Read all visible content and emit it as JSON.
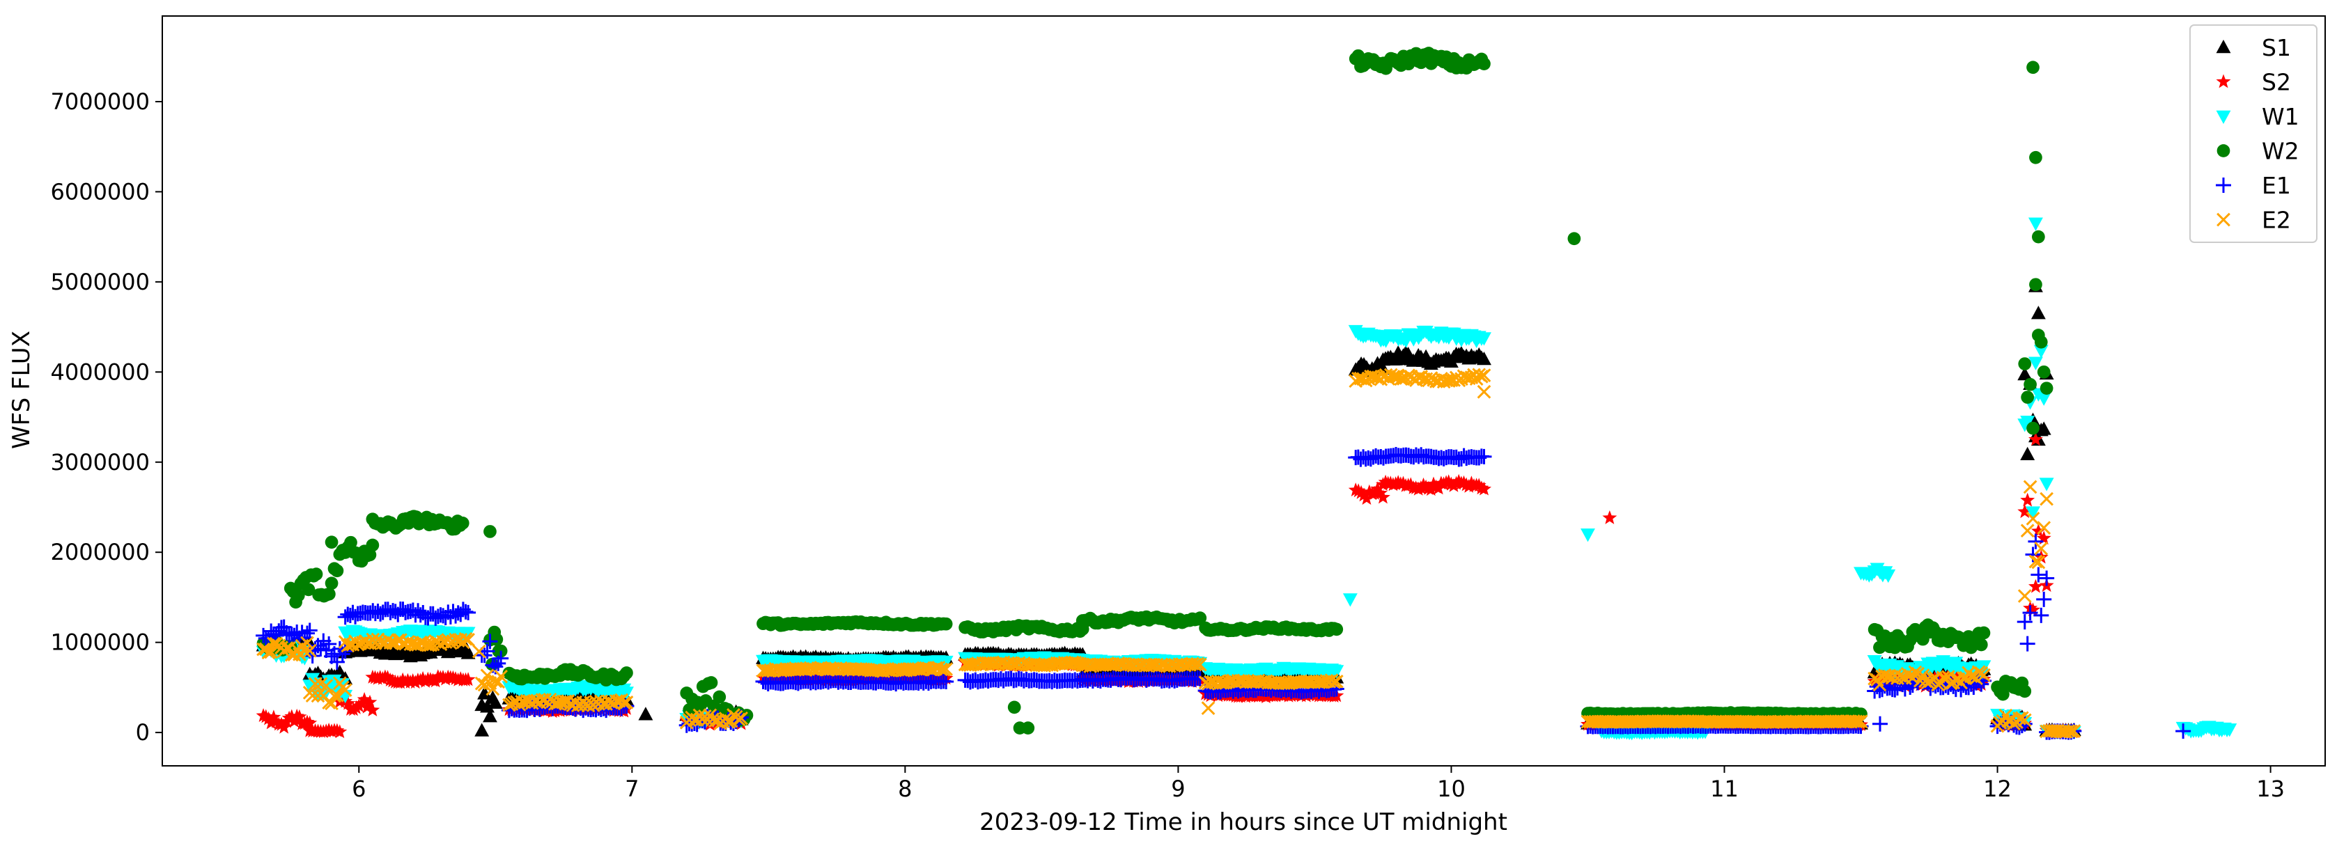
{
  "chart_data": {
    "type": "scatter",
    "title": "",
    "xlabel": "2023-09-12  Time in hours since UT midnight",
    "ylabel": "WFS FLUX",
    "xlim": [
      5.28,
      13.2
    ],
    "ylim": [
      -370000,
      7950000
    ],
    "xticks": [
      6,
      7,
      8,
      9,
      10,
      11,
      12,
      13
    ],
    "yticks": [
      0,
      1000000,
      2000000,
      3000000,
      4000000,
      5000000,
      6000000,
      7000000
    ],
    "ytick_labels": [
      "0",
      "1000000",
      "2000000",
      "3000000",
      "4000000",
      "5000000",
      "6000000",
      "7000000"
    ],
    "grid": false,
    "legend_position": "top-right",
    "series": [
      {
        "name": "S1",
        "color": "#000000",
        "marker": "triangle-up",
        "segments": [
          [
            5.65,
            5.82,
            950000,
            80000
          ],
          [
            5.82,
            5.95,
            620000,
            60000
          ],
          [
            5.95,
            6.4,
            900000,
            60000
          ],
          [
            6.45,
            6.5,
            300000,
            150000
          ],
          [
            6.55,
            6.98,
            380000,
            40000
          ],
          [
            7.2,
            7.4,
            180000,
            60000
          ],
          [
            7.48,
            8.15,
            820000,
            20000
          ],
          [
            8.22,
            8.65,
            860000,
            20000
          ],
          [
            8.65,
            9.08,
            640000,
            20000
          ],
          [
            9.1,
            9.58,
            620000,
            20000
          ],
          [
            9.65,
            9.75,
            4050000,
            60000
          ],
          [
            9.75,
            10.12,
            4150000,
            70000
          ],
          [
            10.5,
            11.5,
            95000,
            8000
          ],
          [
            11.55,
            11.95,
            700000,
            80000
          ],
          [
            12.0,
            12.1,
            120000,
            60000
          ],
          [
            12.1,
            12.18,
            3200000,
            1400000
          ],
          [
            12.18,
            12.28,
            20000,
            10000
          ]
        ],
        "points": [
          [
            6.45,
            20000
          ],
          [
            7.05,
            200000
          ],
          [
            12.14,
            4950000
          ],
          [
            12.15,
            4650000
          ]
        ]
      },
      {
        "name": "S2",
        "color": "#ff0000",
        "marker": "star",
        "segments": [
          [
            5.65,
            5.82,
            120000,
            80000
          ],
          [
            5.82,
            5.93,
            15000,
            12000
          ],
          [
            5.93,
            6.05,
            300000,
            80000
          ],
          [
            6.05,
            6.4,
            580000,
            40000
          ],
          [
            6.55,
            6.98,
            260000,
            30000
          ],
          [
            7.2,
            7.4,
            140000,
            60000
          ],
          [
            7.48,
            8.15,
            600000,
            20000
          ],
          [
            8.22,
            8.65,
            760000,
            20000
          ],
          [
            8.65,
            9.08,
            580000,
            20000
          ],
          [
            9.1,
            9.58,
            410000,
            20000
          ],
          [
            9.65,
            9.75,
            2650000,
            60000
          ],
          [
            9.75,
            10.12,
            2740000,
            50000
          ],
          [
            10.5,
            11.5,
            90000,
            6000
          ],
          [
            11.55,
            11.95,
            580000,
            80000
          ],
          [
            12.0,
            12.1,
            110000,
            60000
          ],
          [
            12.1,
            12.18,
            1800000,
            900000
          ],
          [
            12.18,
            12.28,
            15000,
            10000
          ]
        ],
        "points": [
          [
            10.58,
            2380000
          ],
          [
            12.14,
            3250000
          ]
        ]
      },
      {
        "name": "W1",
        "color": "#00ffff",
        "marker": "triangle-down",
        "segments": [
          [
            5.65,
            5.82,
            900000,
            80000
          ],
          [
            5.82,
            5.95,
            520000,
            120000
          ],
          [
            5.95,
            6.4,
            1100000,
            40000
          ],
          [
            6.55,
            6.98,
            480000,
            40000
          ],
          [
            7.2,
            7.4,
            160000,
            60000
          ],
          [
            7.48,
            8.15,
            790000,
            20000
          ],
          [
            8.22,
            8.65,
            820000,
            20000
          ],
          [
            8.65,
            9.08,
            790000,
            20000
          ],
          [
            9.1,
            9.58,
            700000,
            20000
          ],
          [
            9.65,
            10.12,
            4400000,
            60000
          ],
          [
            10.55,
            10.93,
            10000,
            12000
          ],
          [
            11.5,
            11.6,
            1780000,
            60000
          ],
          [
            11.55,
            11.95,
            720000,
            80000
          ],
          [
            12.0,
            12.1,
            160000,
            60000
          ],
          [
            12.1,
            12.18,
            3500000,
            1800000
          ],
          [
            12.18,
            12.28,
            15000,
            10000
          ],
          [
            12.68,
            12.85,
            40000,
            30000
          ]
        ],
        "points": [
          [
            9.63,
            1480000
          ],
          [
            10.5,
            2200000
          ],
          [
            12.14,
            5650000
          ]
        ]
      },
      {
        "name": "W2",
        "color": "#008000",
        "marker": "circle",
        "segments": [
          [
            5.65,
            5.75,
            950000,
            60000
          ],
          [
            5.75,
            5.9,
            1600000,
            250000
          ],
          [
            5.9,
            6.05,
            2000000,
            250000
          ],
          [
            6.05,
            6.38,
            2330000,
            80000
          ],
          [
            6.48,
            6.52,
            1000000,
            250000
          ],
          [
            6.55,
            6.98,
            640000,
            60000
          ],
          [
            7.2,
            7.35,
            380000,
            200000
          ],
          [
            7.35,
            7.42,
            180000,
            80000
          ],
          [
            7.48,
            8.15,
            1210000,
            25000
          ],
          [
            8.22,
            8.65,
            1150000,
            40000
          ],
          [
            8.65,
            9.08,
            1250000,
            40000
          ],
          [
            9.1,
            9.58,
            1150000,
            25000
          ],
          [
            9.65,
            10.12,
            7450000,
            100000
          ],
          [
            10.5,
            11.5,
            210000,
            10000
          ],
          [
            11.55,
            11.95,
            1050000,
            150000
          ],
          [
            12.0,
            12.1,
            520000,
            120000
          ],
          [
            12.1,
            12.18,
            4000000,
            1500000
          ]
        ],
        "points": [
          [
            6.48,
            2230000
          ],
          [
            8.4,
            280000
          ],
          [
            8.42,
            50000
          ],
          [
            8.45,
            50000
          ],
          [
            10.45,
            5480000
          ],
          [
            12.13,
            7380000
          ],
          [
            12.14,
            6380000
          ],
          [
            12.15,
            5500000
          ]
        ]
      },
      {
        "name": "E1",
        "color": "#0000ff",
        "marker": "plus",
        "segments": [
          [
            5.65,
            5.82,
            1100000,
            80000
          ],
          [
            5.82,
            5.95,
            900000,
            120000
          ],
          [
            5.95,
            6.4,
            1320000,
            60000
          ],
          [
            6.45,
            6.52,
            850000,
            200000
          ],
          [
            6.55,
            6.98,
            270000,
            30000
          ],
          [
            7.2,
            7.4,
            130000,
            60000
          ],
          [
            7.48,
            8.15,
            560000,
            20000
          ],
          [
            8.22,
            8.65,
            580000,
            20000
          ],
          [
            8.65,
            9.08,
            590000,
            20000
          ],
          [
            9.1,
            9.58,
            470000,
            20000
          ],
          [
            9.65,
            10.12,
            3060000,
            30000
          ],
          [
            10.5,
            11.5,
            70000,
            5000
          ],
          [
            11.55,
            11.95,
            520000,
            80000
          ],
          [
            12.0,
            12.1,
            100000,
            60000
          ],
          [
            12.1,
            12.18,
            1500000,
            800000
          ],
          [
            12.18,
            12.28,
            10000,
            8000
          ]
        ],
        "points": [
          [
            11.57,
            95000
          ],
          [
            12.68,
            15000
          ]
        ]
      },
      {
        "name": "E2",
        "color": "#ffa500",
        "marker": "x",
        "segments": [
          [
            5.65,
            5.82,
            920000,
            80000
          ],
          [
            5.82,
            5.95,
            450000,
            150000
          ],
          [
            5.95,
            6.4,
            1000000,
            40000
          ],
          [
            6.45,
            6.52,
            600000,
            150000
          ],
          [
            6.55,
            6.98,
            330000,
            40000
          ],
          [
            7.2,
            7.4,
            150000,
            60000
          ],
          [
            7.48,
            8.15,
            700000,
            20000
          ],
          [
            8.22,
            8.65,
            760000,
            20000
          ],
          [
            8.65,
            9.08,
            750000,
            20000
          ],
          [
            9.1,
            9.58,
            560000,
            20000
          ],
          [
            9.65,
            10.12,
            3930000,
            40000
          ],
          [
            10.5,
            11.5,
            120000,
            6000
          ],
          [
            11.55,
            11.95,
            600000,
            80000
          ],
          [
            12.0,
            12.1,
            130000,
            60000
          ],
          [
            12.1,
            12.18,
            2000000,
            900000
          ],
          [
            12.18,
            12.28,
            15000,
            10000
          ]
        ],
        "points": [
          [
            6.44,
            900000
          ],
          [
            9.11,
            270000
          ],
          [
            10.12,
            3780000
          ]
        ]
      }
    ]
  }
}
